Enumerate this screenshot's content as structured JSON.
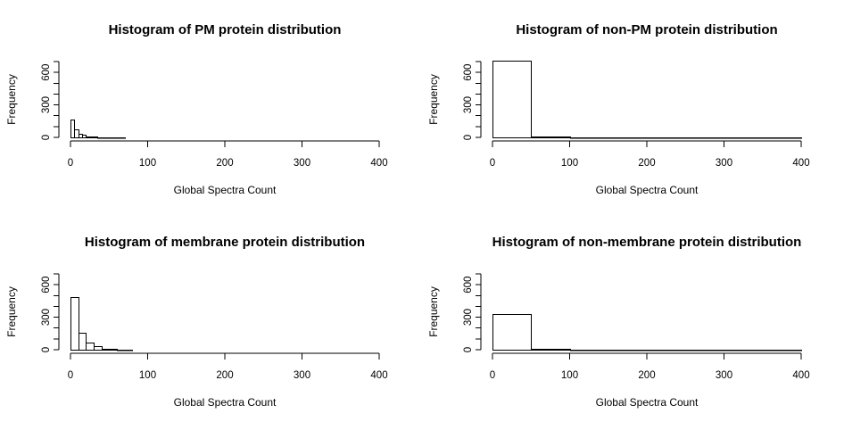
{
  "chart_data": [
    {
      "type": "bar",
      "title": "Histogram of PM protein distribution",
      "xlabel": "Global Spectra Count",
      "ylabel": "Frequency",
      "xlim": [
        0,
        400
      ],
      "ylim": [
        0,
        700
      ],
      "xticks": [
        0,
        100,
        200,
        300,
        400
      ],
      "yticks": [
        0,
        300,
        600
      ],
      "ygrid_minor": [
        0,
        100,
        200,
        300,
        400,
        500,
        600,
        700
      ],
      "bin_width": 5,
      "bins_start": [
        0,
        5,
        10,
        15,
        20,
        25,
        30,
        35,
        40,
        45,
        50,
        55,
        60,
        65
      ],
      "values": [
        165,
        75,
        35,
        22,
        12,
        8,
        5,
        4,
        3,
        2,
        2,
        1,
        1,
        1
      ],
      "grid": false
    },
    {
      "type": "bar",
      "title": "Histogram of non-PM protein distribution",
      "xlabel": "Global Spectra Count",
      "ylabel": "Frequency",
      "xlim": [
        0,
        400
      ],
      "ylim": [
        0,
        700
      ],
      "xticks": [
        0,
        100,
        200,
        300,
        400
      ],
      "yticks": [
        0,
        300,
        600
      ],
      "ygrid_minor": [
        0,
        100,
        200,
        300,
        400,
        500,
        600,
        700
      ],
      "bin_width": 50,
      "bins_start": [
        0,
        50,
        100,
        150,
        200,
        250,
        300,
        350
      ],
      "values": [
        710,
        8,
        3,
        2,
        1,
        1,
        1,
        1
      ],
      "grid": false
    },
    {
      "type": "bar",
      "title": "Histogram of membrane protein distribution",
      "xlabel": "Global Spectra Count",
      "ylabel": "Frequency",
      "xlim": [
        0,
        400
      ],
      "ylim": [
        0,
        700
      ],
      "xticks": [
        0,
        100,
        200,
        300,
        400
      ],
      "yticks": [
        0,
        300,
        600
      ],
      "ygrid_minor": [
        0,
        100,
        200,
        300,
        400,
        500,
        600,
        700
      ],
      "bin_width": 10,
      "bins_start": [
        0,
        10,
        20,
        30,
        40,
        50,
        60,
        70
      ],
      "values": [
        485,
        155,
        70,
        30,
        12,
        6,
        4,
        2
      ],
      "grid": false
    },
    {
      "type": "bar",
      "title": "Histogram of non-membrane protein distribution",
      "xlabel": "Global Spectra Count",
      "ylabel": "Frequency",
      "xlim": [
        0,
        400
      ],
      "ylim": [
        0,
        700
      ],
      "xticks": [
        0,
        100,
        200,
        300,
        400
      ],
      "yticks": [
        0,
        300,
        600
      ],
      "ygrid_minor": [
        0,
        100,
        200,
        300,
        400,
        500,
        600,
        700
      ],
      "bin_width": 50,
      "bins_start": [
        0,
        50,
        100,
        150,
        200,
        250,
        300,
        350
      ],
      "values": [
        330,
        7,
        3,
        3,
        2,
        1,
        1,
        1
      ],
      "grid": false
    }
  ]
}
